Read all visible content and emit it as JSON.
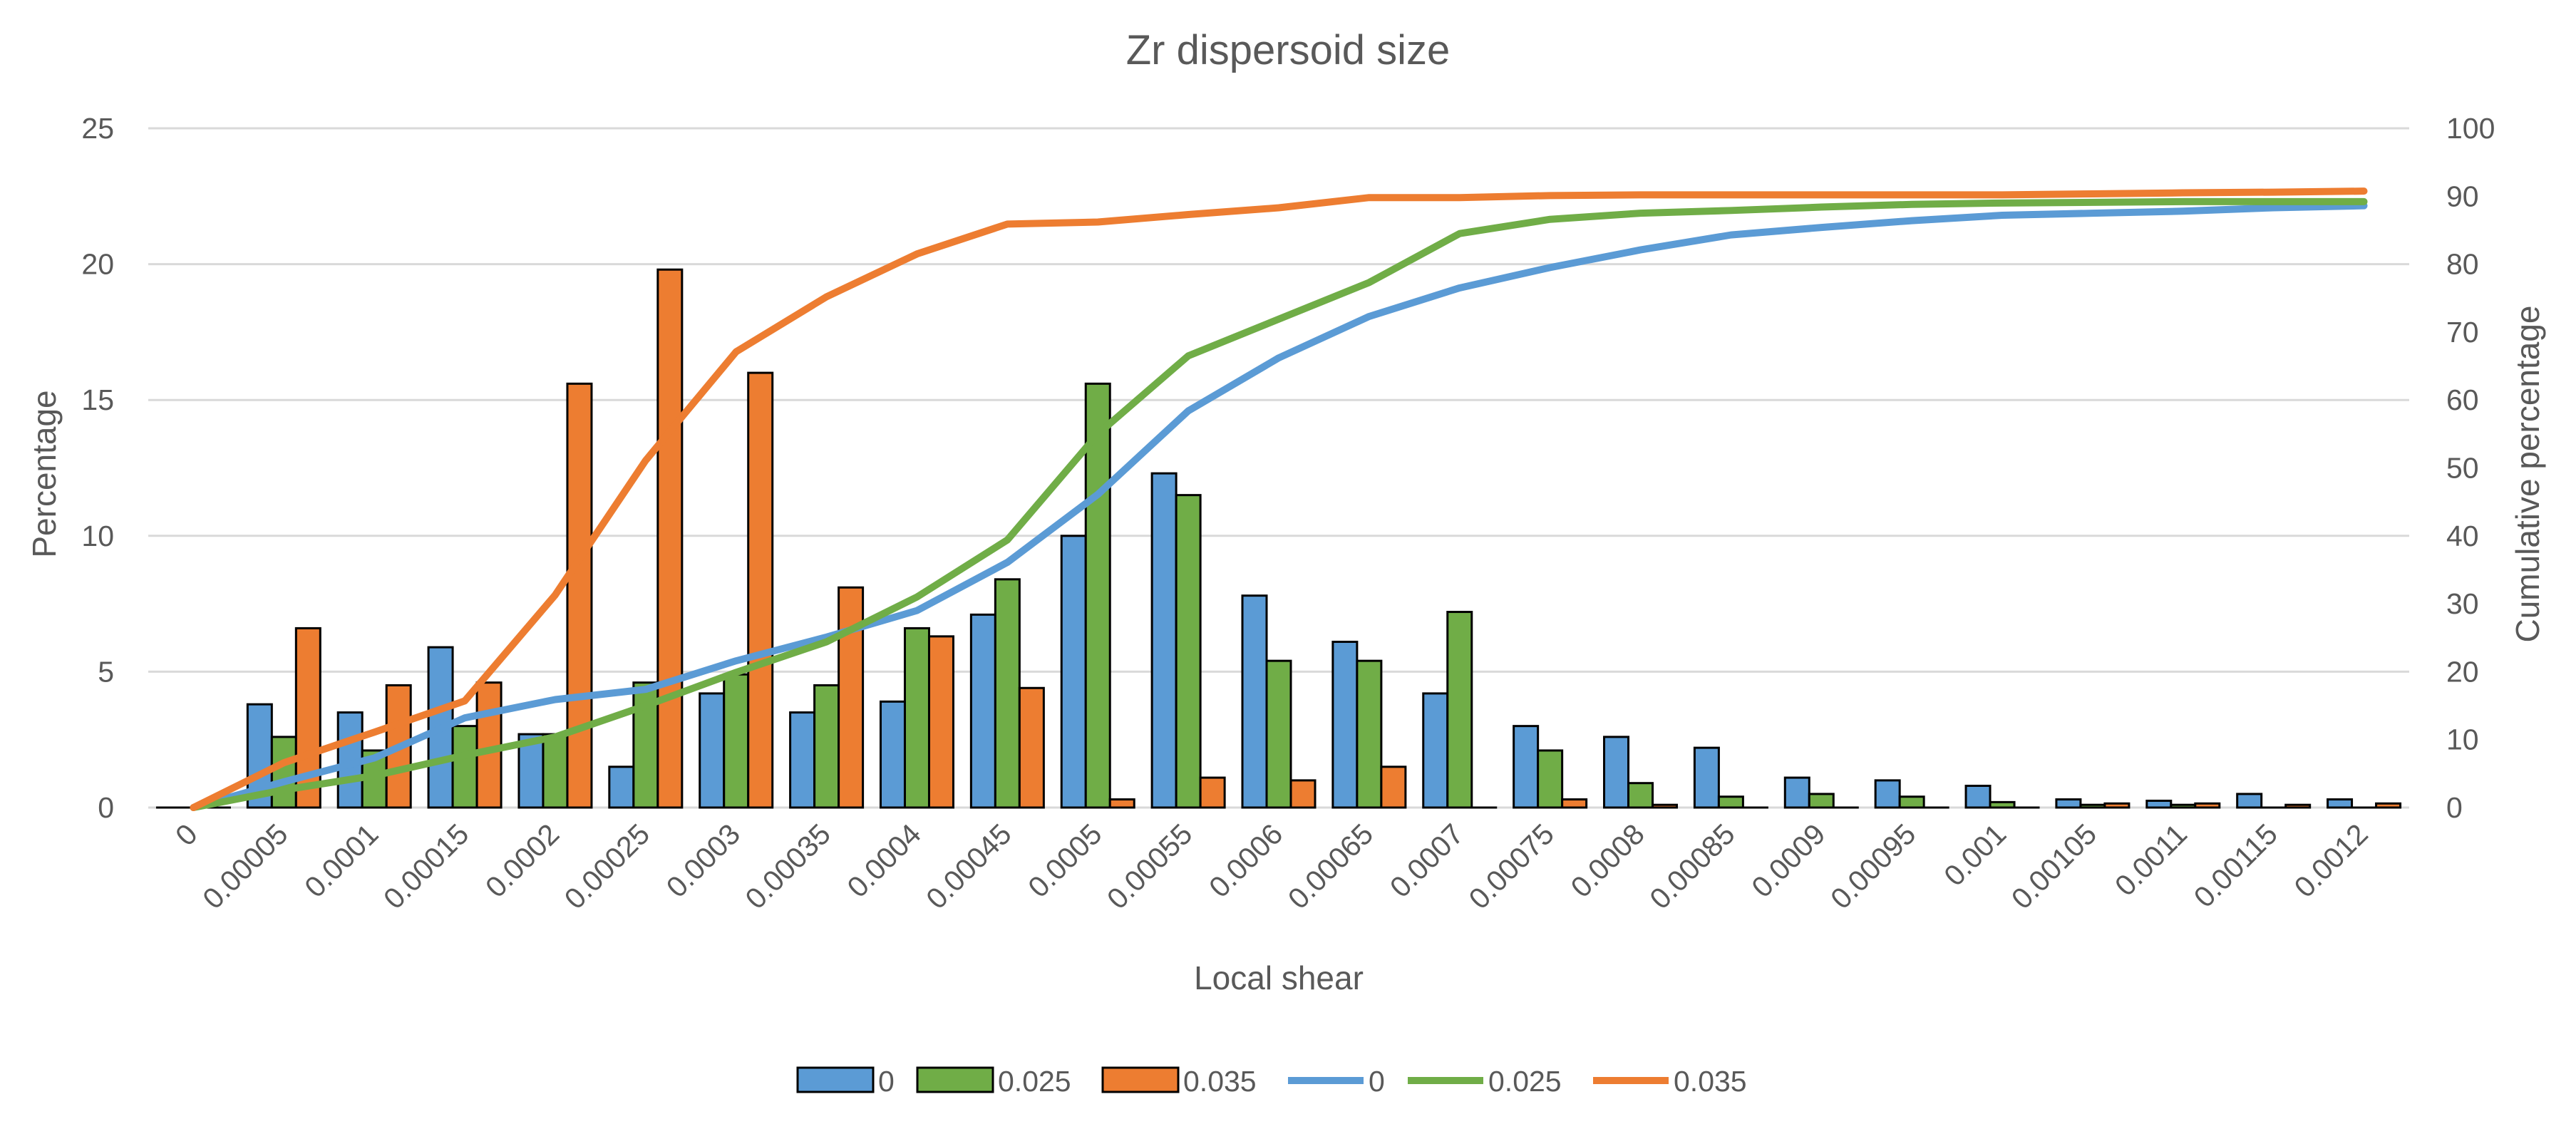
{
  "chart_data": {
    "type": "bar",
    "title": "Zr dispersoid size",
    "xlabel": "Local shear",
    "ylabel": "Percentage",
    "y2label": "Cumulative percentage",
    "ylim": [
      0,
      25
    ],
    "y2lim": [
      0,
      100
    ],
    "yticks": [
      "0",
      "5",
      "10",
      "15",
      "20",
      "25"
    ],
    "y2ticks": [
      "0",
      "10",
      "20",
      "30",
      "40",
      "50",
      "60",
      "70",
      "80",
      "90",
      "100"
    ],
    "grid": true,
    "legend_position": "bottom",
    "categories": [
      "0",
      "0.00005",
      "0.0001",
      "0.00015",
      "0.0002",
      "0.00025",
      "0.0003",
      "0.00035",
      "0.0004",
      "0.00045",
      "0.0005",
      "0.00055",
      "0.0006",
      "0.00065",
      "0.0007",
      "0.00075",
      "0.0008",
      "0.00085",
      "0.0009",
      "0.00095",
      "0.001",
      "0.00105",
      "0.0011",
      "0.00115",
      "0.0012"
    ],
    "bar_series": [
      {
        "name": "0",
        "color": "#5B9BD5",
        "axis": "left",
        "values": [
          0,
          3.8,
          3.5,
          5.9,
          2.7,
          1.5,
          4.2,
          3.5,
          3.9,
          7.1,
          10.0,
          12.3,
          7.8,
          6.1,
          4.2,
          3.0,
          2.6,
          2.2,
          1.1,
          1.0,
          0.8,
          0.3,
          0.25,
          0.5,
          0.3
        ]
      },
      {
        "name": "0.025",
        "color": "#70AD47",
        "axis": "left",
        "values": [
          0,
          2.6,
          2.1,
          3.0,
          2.7,
          4.6,
          4.9,
          4.5,
          6.6,
          8.4,
          15.6,
          11.5,
          5.4,
          5.4,
          7.2,
          2.1,
          0.9,
          0.4,
          0.5,
          0.4,
          0.2,
          0.1,
          0.1,
          0,
          0
        ]
      },
      {
        "name": "0.035",
        "color": "#ED7D31",
        "axis": "left",
        "values": [
          0,
          6.6,
          4.5,
          4.6,
          15.6,
          19.8,
          16.0,
          8.1,
          6.3,
          4.4,
          0.3,
          1.1,
          1.0,
          1.5,
          0,
          0.3,
          0.1,
          0,
          0,
          0,
          0,
          0.15,
          0.15,
          0.1,
          0.15
        ]
      }
    ],
    "line_series": [
      {
        "name": "0",
        "color": "#5B9BD5",
        "axis": "right",
        "values": [
          0,
          3.8,
          7.3,
          13.2,
          15.9,
          17.4,
          21.6,
          25.1,
          29.0,
          36.1,
          46.1,
          58.4,
          66.2,
          72.3,
          76.5,
          79.5,
          82.1,
          84.3,
          85.4,
          86.4,
          87.2,
          87.5,
          87.8,
          88.3,
          88.6
        ]
      },
      {
        "name": "0.025",
        "color": "#70AD47",
        "axis": "right",
        "values": [
          0,
          2.6,
          4.7,
          7.7,
          10.4,
          15.0,
          19.9,
          24.4,
          31.0,
          39.4,
          55.0,
          66.5,
          71.9,
          77.3,
          84.5,
          86.6,
          87.5,
          87.9,
          88.4,
          88.8,
          89.0,
          89.1,
          89.2,
          89.2,
          89.2
        ]
      },
      {
        "name": "0.035",
        "color": "#ED7D31",
        "axis": "right",
        "values": [
          0,
          6.6,
          11.1,
          15.7,
          31.3,
          51.1,
          67.1,
          75.2,
          81.5,
          85.9,
          86.2,
          87.3,
          88.3,
          89.8,
          89.8,
          90.1,
          90.2,
          90.2,
          90.2,
          90.2,
          90.2,
          90.35,
          90.5,
          90.6,
          90.75
        ]
      }
    ]
  }
}
